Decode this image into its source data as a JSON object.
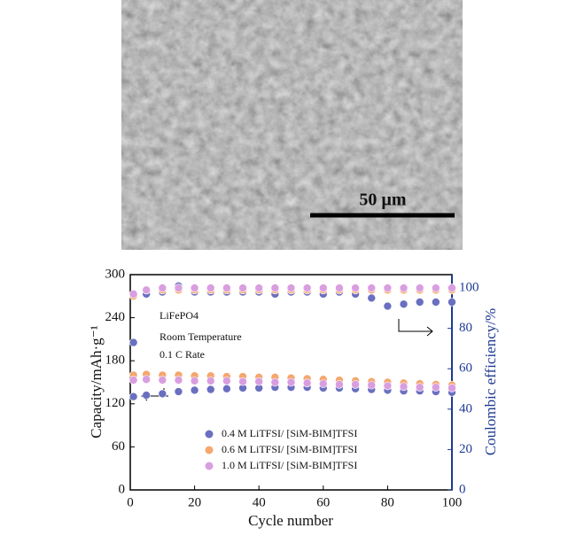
{
  "image_label": "50 µm",
  "chart_data": {
    "type": "scatter",
    "xlabel": "Cycle number",
    "ylabel": "Capacity/mAh·g⁻¹",
    "y2label": "Coulombic efficiency/%",
    "annotations": [
      "LiFePO4",
      "Room Temperature",
      "0.1 C Rate"
    ],
    "x": [
      1,
      5,
      10,
      15,
      20,
      25,
      30,
      35,
      40,
      45,
      50,
      55,
      60,
      65,
      70,
      75,
      80,
      85,
      90,
      95,
      100
    ],
    "xlim": [
      0,
      100
    ],
    "xticks": [
      0,
      20,
      40,
      60,
      80,
      100
    ],
    "ylim": [
      0,
      300
    ],
    "yticks": [
      0,
      60,
      120,
      180,
      240,
      300
    ],
    "y2lim": [
      0,
      106.6
    ],
    "y2ticks": [
      0,
      20,
      40,
      60,
      80,
      100
    ],
    "series": [
      {
        "name": "0.4 M LiTFSI/ [SiM-BIM]TFSI",
        "color": "#6a6fc0",
        "values": [
          130,
          132,
          134,
          137,
          139,
          140,
          141,
          142,
          142,
          143,
          143,
          143,
          142,
          142,
          141,
          140,
          139,
          138,
          138,
          137,
          136
        ],
        "efficiency": [
          73,
          97,
          98,
          101,
          98,
          98,
          98,
          98,
          98,
          97,
          98,
          98,
          97,
          98,
          97,
          95,
          91,
          92,
          93,
          93,
          93
        ]
      },
      {
        "name": "0.6 M LiTFSI/ [SiM-BIM]TFSI",
        "color": "#f4a76e",
        "values": [
          160,
          161,
          160,
          160,
          159,
          159,
          158,
          158,
          157,
          157,
          156,
          155,
          154,
          153,
          152,
          151,
          150,
          149,
          148,
          147,
          146
        ],
        "efficiency": [
          96,
          99,
          99,
          99,
          99,
          99,
          99,
          99,
          99,
          99,
          99,
          99,
          99,
          99,
          99,
          99,
          99,
          99,
          99,
          99,
          99
        ]
      },
      {
        "name": "1.0 M LiTFSI/ [SiM-BIM]TFSI",
        "color": "#d99ee0",
        "values": [
          153,
          154,
          153,
          153,
          152,
          152,
          152,
          151,
          151,
          150,
          150,
          149,
          148,
          147,
          147,
          146,
          145,
          144,
          143,
          143,
          142
        ],
        "efficiency": [
          97,
          99,
          100,
          100,
          100,
          100,
          100,
          100,
          100,
          100,
          100,
          100,
          100,
          100,
          100,
          100,
          100,
          100,
          100,
          100,
          100
        ]
      }
    ]
  }
}
